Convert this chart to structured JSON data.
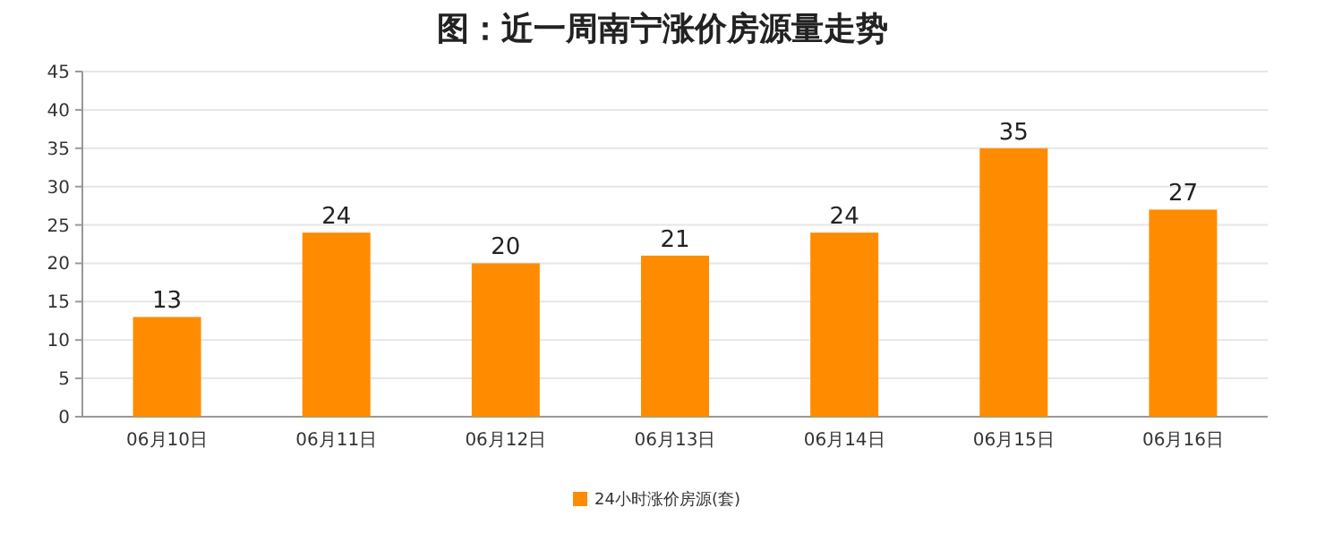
{
  "chart_data": {
    "type": "bar",
    "title": "图：近一周南宁涨价房源量走势",
    "categories": [
      "06月10日",
      "06月11日",
      "06月12日",
      "06月13日",
      "06月14日",
      "06月15日",
      "06月16日"
    ],
    "series": [
      {
        "name": "24小时涨价房源(套)",
        "color": "#ff8c00",
        "values": [
          13,
          24,
          20,
          21,
          24,
          35,
          27
        ]
      }
    ],
    "ylim": [
      0,
      45
    ],
    "yticks": [
      0,
      5,
      10,
      15,
      20,
      25,
      30,
      35,
      40,
      45
    ],
    "grid": "y",
    "legend": "bottom",
    "data_labels": true
  }
}
